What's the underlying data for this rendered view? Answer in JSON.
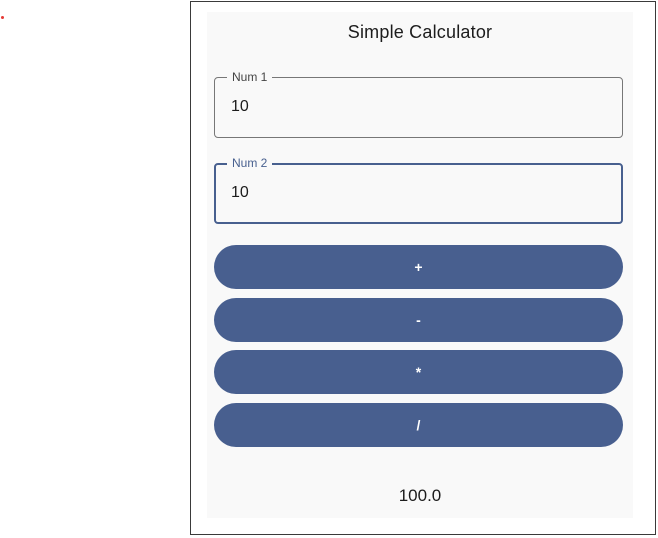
{
  "app": {
    "title": "Simple Calculator"
  },
  "fields": {
    "num1": {
      "label": "Num 1",
      "value": "10"
    },
    "num2": {
      "label": "Num 2",
      "value": "10"
    }
  },
  "operations": {
    "add": "+",
    "subtract": "-",
    "multiply": "*",
    "divide": "/"
  },
  "result": "100.0",
  "colors": {
    "accent": "#485f8f",
    "surface": "#f9f9f9",
    "marker": "#e53935"
  }
}
